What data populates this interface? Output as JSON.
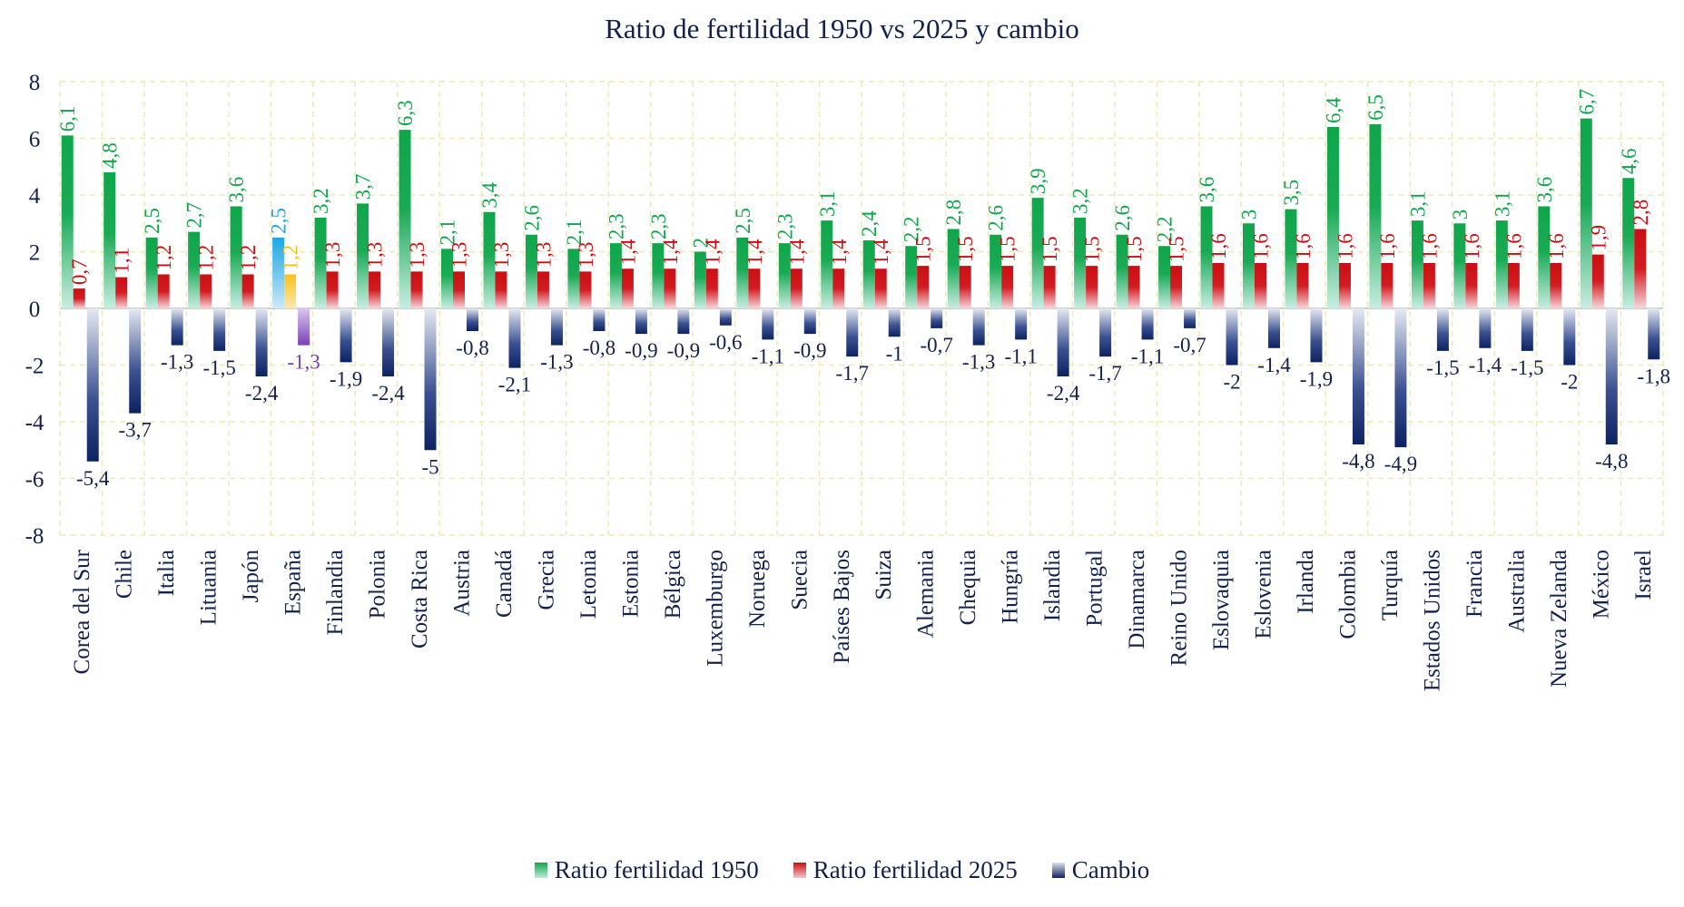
{
  "chart_data": {
    "type": "bar",
    "title": "Ratio de fertilidad 1950 vs 2025 y cambio",
    "xlabel": "",
    "ylabel": "",
    "ylim": [
      -8,
      8
    ],
    "yticks": [
      8,
      6,
      4,
      2,
      0,
      -2,
      -4,
      -6,
      -8
    ],
    "grid": true,
    "legend_position": "bottom",
    "categories": [
      "Corea del Sur",
      "Chile",
      "Italia",
      "Lituania",
      "Japón",
      "España",
      "Finlandia",
      "Polonia",
      "Costa Rica",
      "Austria",
      "Canadá",
      "Grecia",
      "Letonia",
      "Estonia",
      "Bélgica",
      "Luxemburgo",
      "Noruega",
      "Suecia",
      "Países Bajos",
      "Suiza",
      "Alemania",
      "Chequia",
      "Hungría",
      "Islandia",
      "Portugal",
      "Dinamarca",
      "Reino Unido",
      "Eslovaquia",
      "Eslovenia",
      "Irlanda",
      "Colombia",
      "Turquía",
      "Estados Unidos",
      "Francia",
      "Australia",
      "Nueva Zelanda",
      "México",
      "Israel"
    ],
    "highlight_category": "España",
    "series": [
      {
        "name": "Ratio fertilidad 1950",
        "color": "#0fa64b",
        "highlight_color": "#1ba6e6",
        "values": [
          6.1,
          4.8,
          2.5,
          2.7,
          3.6,
          2.5,
          3.2,
          3.7,
          6.3,
          2.1,
          3.4,
          2.6,
          2.1,
          2.3,
          2.3,
          2,
          2.5,
          2.3,
          3.1,
          2.4,
          2.2,
          2.8,
          2.6,
          3.9,
          3.2,
          2.6,
          2.2,
          3.6,
          3,
          3.5,
          6.4,
          6.5,
          3.1,
          3,
          3.1,
          3.6,
          6.7,
          4.6
        ],
        "labels": [
          "6,1",
          "4,8",
          "2,5",
          "2,7",
          "3,6",
          "2,5",
          "3,2",
          "3,7",
          "6,3",
          "2,1",
          "3,4",
          "2,6",
          "2,1",
          "2,3",
          "2,3",
          "2",
          "2,5",
          "2,3",
          "3,1",
          "2,4",
          "2,2",
          "2,8",
          "2,6",
          "3,9",
          "3,2",
          "2,6",
          "2,2",
          "3,6",
          "3",
          "3,5",
          "6,4",
          "6,5",
          "3,1",
          "3",
          "3,1",
          "3,6",
          "6,7",
          "4,6"
        ]
      },
      {
        "name": "Ratio fertilidad 2025",
        "color": "#c90f12",
        "highlight_color": "#f7c21a",
        "values": [
          0.7,
          1.1,
          1.2,
          1.2,
          1.2,
          1.2,
          1.3,
          1.3,
          1.3,
          1.3,
          1.3,
          1.3,
          1.3,
          1.4,
          1.4,
          1.4,
          1.4,
          1.4,
          1.4,
          1.4,
          1.5,
          1.5,
          1.5,
          1.5,
          1.5,
          1.5,
          1.5,
          1.6,
          1.6,
          1.6,
          1.6,
          1.6,
          1.6,
          1.6,
          1.6,
          1.6,
          1.9,
          2.8
        ],
        "labels": [
          "0,7",
          "1,1",
          "1,2",
          "1,2",
          "1,2",
          "1,2",
          "1,3",
          "1,3",
          "1,3",
          "1,3",
          "1,3",
          "1,3",
          "1,3",
          "1,4",
          "1,4",
          "1,4",
          "1,4",
          "1,4",
          "1,4",
          "1,4",
          "1,5",
          "1,5",
          "1,5",
          "1,5",
          "1,5",
          "1,5",
          "1,5",
          "1,6",
          "1,6",
          "1,6",
          "1,6",
          "1,6",
          "1,6",
          "1,6",
          "1,6",
          "1,6",
          "1,9",
          "2,8"
        ]
      },
      {
        "name": "Cambio",
        "color": "#0d2260",
        "highlight_color": "#7a3fb8",
        "values": [
          -5.4,
          -3.7,
          -1.3,
          -1.5,
          -2.4,
          -1.3,
          -1.9,
          -2.4,
          -5,
          -0.8,
          -2.1,
          -1.3,
          -0.8,
          -0.9,
          -0.9,
          -0.6,
          -1.1,
          -0.9,
          -1.7,
          -1,
          -0.7,
          -1.3,
          -1.1,
          -2.4,
          -1.7,
          -1.1,
          -0.7,
          -2,
          -1.4,
          -1.9,
          -4.8,
          -4.9,
          -1.5,
          -1.4,
          -1.5,
          -2,
          -4.8,
          -1.8
        ],
        "labels": [
          "-5,4",
          "-3,7",
          "-1,3",
          "-1,5",
          "-2,4",
          "-1,3",
          "-1,9",
          "-2,4",
          "-5",
          "-0,8",
          "-2,1",
          "-1,3",
          "-0,8",
          "-0,9",
          "-0,9",
          "-0,6",
          "-1,1",
          "-0,9",
          "-1,7",
          "-1",
          "-0,7",
          "-1,3",
          "-1,1",
          "-2,4",
          "-1,7",
          "-1,1",
          "-0,7",
          "-2",
          "-1,4",
          "-1,9",
          "-4,8",
          "-4,9",
          "-1,5",
          "-1,4",
          "-1,5",
          "-2",
          "-4,8",
          "-1,8"
        ]
      }
    ]
  },
  "legend": {
    "items": [
      "Ratio fertilidad 1950",
      "Ratio fertilidad 2025",
      "Cambio"
    ]
  }
}
